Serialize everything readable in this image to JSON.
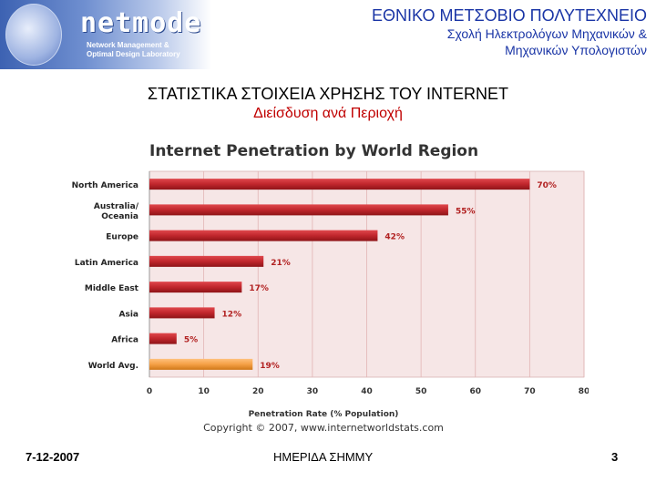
{
  "logo": {
    "brand": "netmode",
    "subtitle_line1": "Network Management &",
    "subtitle_line2": "Optimal Design Laboratory"
  },
  "institution": {
    "name": "ΕΘΝΙΚΟ ΜΕΤΣΟΒΙΟ ΠΟΛΥΤΕΧΝΕΙΟ",
    "school_line1": "Σχολή Ηλεκτρολόγων Μηχανικών &",
    "school_line2": "Μηχανικών Υπολογιστών"
  },
  "slide": {
    "title": "ΣΤΑΤΙΣΤΙΚΑ ΣΤΟΙΧΕΙΑ ΧΡΗΣΗΣ ΤΟΥ INTERNET",
    "subtitle": "Διείσδυση ανά Περιοχή"
  },
  "chart_data": {
    "type": "bar",
    "orientation": "horizontal",
    "title": "Internet Penetration by World Region",
    "categories": [
      "North America",
      "Australia/\nOceania",
      "Europe",
      "Latin America",
      "Middle East",
      "Asia",
      "Africa",
      "World Avg."
    ],
    "values": [
      70,
      55,
      42,
      21,
      17,
      12,
      5,
      19
    ],
    "value_labels": [
      "70%",
      "55%",
      "42%",
      "21%",
      "17%",
      "12%",
      "5%",
      "19%"
    ],
    "xlabel": "Penetration Rate (% Population)",
    "xlim": [
      0,
      80
    ],
    "xticks": [
      0,
      10,
      20,
      30,
      40,
      50,
      60,
      70,
      80
    ],
    "grid": true,
    "copyright": "Copyright © 2007, www.internetworldstats.com",
    "colors": {
      "bar": "#c0262c",
      "highlight": "#f5a046",
      "plot_bg": "#f6e6e6",
      "grid": "#e2b4b4"
    }
  },
  "footer": {
    "date": "7-12-2007",
    "event": "ΗΜΕΡΙΔΑ ΣΗΜΜΥ",
    "page": "3"
  }
}
